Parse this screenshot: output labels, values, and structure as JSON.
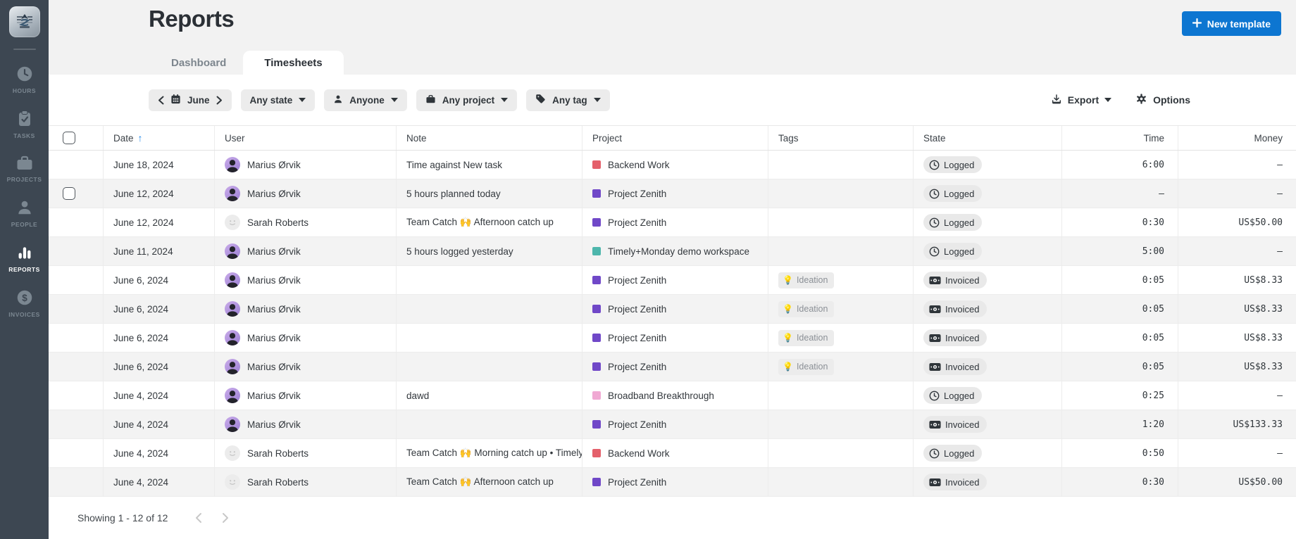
{
  "sidebar": {
    "items": [
      {
        "label": "HOURS",
        "icon": "clock-icon",
        "active": false
      },
      {
        "label": "TASKS",
        "icon": "tasks-icon",
        "active": false
      },
      {
        "label": "PROJECTS",
        "icon": "briefcase-icon",
        "active": false
      },
      {
        "label": "PEOPLE",
        "icon": "person-icon",
        "active": false
      },
      {
        "label": "REPORTS",
        "icon": "bar-chart-icon",
        "active": true
      },
      {
        "label": "INVOICES",
        "icon": "dollar-icon",
        "active": false
      }
    ]
  },
  "header": {
    "title": "Reports",
    "new_template_label": "New template",
    "tabs": [
      {
        "label": "Dashboard",
        "active": false
      },
      {
        "label": "Timesheets",
        "active": true
      }
    ]
  },
  "filters": {
    "period": "June",
    "state": "Any state",
    "user": "Anyone",
    "project": "Any project",
    "tag": "Any tag",
    "export_label": "Export",
    "options_label": "Options"
  },
  "table": {
    "columns": [
      "Date",
      "User",
      "Note",
      "Project",
      "Tags",
      "State",
      "Time",
      "Money"
    ],
    "sort": {
      "column": "Date",
      "direction": "asc",
      "arrow": "↑"
    },
    "rows": [
      {
        "date": "June 18, 2024",
        "user": "Marius Ørvik",
        "avatar": "marius",
        "note": "Time against New task",
        "project": "Backend Work",
        "project_color": "#e4606b",
        "tag": null,
        "state": "Logged",
        "time": "6:00",
        "money": "—",
        "checkbox": false
      },
      {
        "date": "June 12, 2024",
        "user": "Marius Ørvik",
        "avatar": "marius",
        "note": "5 hours planned today",
        "project": "Project Zenith",
        "project_color": "#7048c8",
        "tag": null,
        "state": "Logged",
        "time": "—",
        "money": "—",
        "checkbox": true
      },
      {
        "date": "June 12, 2024",
        "user": "Sarah Roberts",
        "avatar": "sarah",
        "note": "Team Catch 🙌 Afternoon catch up",
        "project": "Project Zenith",
        "project_color": "#7048c8",
        "tag": null,
        "state": "Logged",
        "time": "0:30",
        "money": "US$50.00",
        "checkbox": false
      },
      {
        "date": "June 11, 2024",
        "user": "Marius Ørvik",
        "avatar": "marius",
        "note": "5 hours logged yesterday",
        "project": "Timely+Monday demo workspace",
        "project_color": "#4db6ac",
        "tag": null,
        "state": "Logged",
        "time": "5:00",
        "money": "—",
        "checkbox": false
      },
      {
        "date": "June 6, 2024",
        "user": "Marius Ørvik",
        "avatar": "marius",
        "note": "",
        "project": "Project Zenith",
        "project_color": "#7048c8",
        "tag": {
          "icon": "💡",
          "label": "Ideation"
        },
        "state": "Invoiced",
        "time": "0:05",
        "money": "US$8.33",
        "checkbox": false
      },
      {
        "date": "June 6, 2024",
        "user": "Marius Ørvik",
        "avatar": "marius",
        "note": "",
        "project": "Project Zenith",
        "project_color": "#7048c8",
        "tag": {
          "icon": "💡",
          "label": "Ideation"
        },
        "state": "Invoiced",
        "time": "0:05",
        "money": "US$8.33",
        "checkbox": false
      },
      {
        "date": "June 6, 2024",
        "user": "Marius Ørvik",
        "avatar": "marius",
        "note": "",
        "project": "Project Zenith",
        "project_color": "#7048c8",
        "tag": {
          "icon": "💡",
          "label": "Ideation"
        },
        "state": "Invoiced",
        "time": "0:05",
        "money": "US$8.33",
        "checkbox": false
      },
      {
        "date": "June 6, 2024",
        "user": "Marius Ørvik",
        "avatar": "marius",
        "note": "",
        "project": "Project Zenith",
        "project_color": "#7048c8",
        "tag": {
          "icon": "💡",
          "label": "Ideation"
        },
        "state": "Invoiced",
        "time": "0:05",
        "money": "US$8.33",
        "checkbox": false
      },
      {
        "date": "June 4, 2024",
        "user": "Marius Ørvik",
        "avatar": "marius",
        "note": "dawd",
        "project": "Broadband Breakthrough",
        "project_color": "#f0a9d3",
        "tag": null,
        "state": "Logged",
        "time": "0:25",
        "money": "—",
        "checkbox": false
      },
      {
        "date": "June 4, 2024",
        "user": "Marius Ørvik",
        "avatar": "marius",
        "note": "",
        "project": "Project Zenith",
        "project_color": "#7048c8",
        "tag": null,
        "state": "Invoiced",
        "time": "1:20",
        "money": "US$133.33",
        "checkbox": false
      },
      {
        "date": "June 4, 2024",
        "user": "Sarah Roberts",
        "avatar": "sarah",
        "note": "Team Catch 🙌 Morning catch up • Timely",
        "project": "Backend Work",
        "project_color": "#e4606b",
        "tag": null,
        "state": "Logged",
        "time": "0:50",
        "money": "—",
        "checkbox": false
      },
      {
        "date": "June 4, 2024",
        "user": "Sarah Roberts",
        "avatar": "sarah",
        "note": "Team Catch 🙌 Afternoon catch up",
        "project": "Project Zenith",
        "project_color": "#7048c8",
        "tag": null,
        "state": "Invoiced",
        "time": "0:30",
        "money": "US$50.00",
        "checkbox": false
      }
    ]
  },
  "footer": {
    "showing": "Showing 1 - 12 of 12"
  },
  "colors": {
    "accent_blue": "#0d76d1",
    "sort_arrow_blue": "#1f87e8",
    "sidebar_bg": "#3d4752",
    "header_bg": "#f2f2f2",
    "row_alt_bg": "#f3f3f3"
  }
}
